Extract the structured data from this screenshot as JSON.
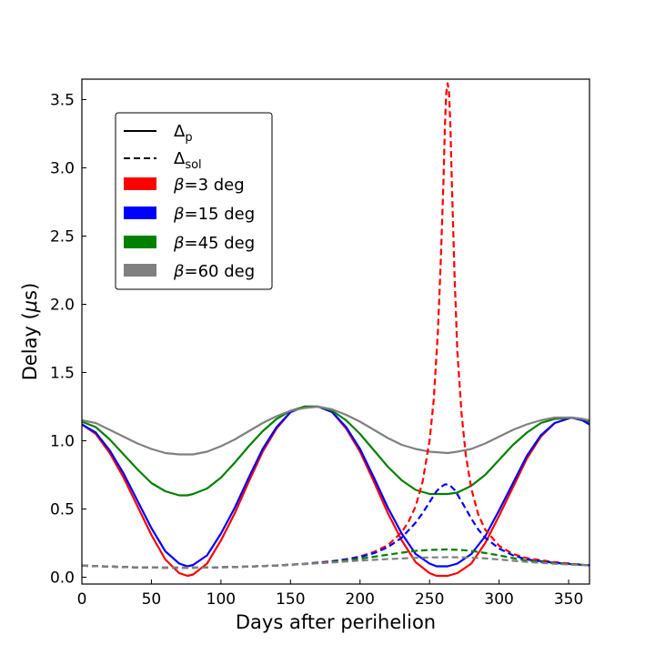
{
  "chart_data": {
    "type": "line",
    "xlabel": "Days after perihelion",
    "ylabel_prefix": "Delay (",
    "ylabel_symbol": "μ",
    "ylabel_suffix": "s)",
    "xlim": [
      0,
      365
    ],
    "ylim": [
      -0.05,
      3.65
    ],
    "xticks": [
      0,
      50,
      100,
      150,
      200,
      250,
      300,
      350
    ],
    "yticks": [
      0.0,
      0.5,
      1.0,
      1.5,
      2.0,
      2.5,
      3.0,
      3.5
    ],
    "ytick_labels": [
      "0.0",
      "0.5",
      "1.0",
      "1.5",
      "2.0",
      "2.5",
      "3.0",
      "3.5"
    ],
    "grid": false,
    "legend": {
      "position": "upper-left",
      "items": [
        {
          "kind": "line",
          "dash": "solid",
          "main": "Δ",
          "sub": "p"
        },
        {
          "kind": "line",
          "dash": "dashed",
          "main": "Δ",
          "sub": "sol"
        },
        {
          "kind": "patch",
          "color": "#ff0000",
          "symbol": "β",
          "text": "=3 deg"
        },
        {
          "kind": "patch",
          "color": "#0000ff",
          "symbol": "β",
          "text": "=15 deg"
        },
        {
          "kind": "patch",
          "color": "#008000",
          "symbol": "β",
          "text": "=45 deg"
        },
        {
          "kind": "patch",
          "color": "#808080",
          "symbol": "β",
          "text": "=60 deg"
        }
      ]
    },
    "series": [
      {
        "name": "Δp β=3 deg",
        "color": "#ff0000",
        "dash": "solid",
        "x": [
          0,
          10,
          20,
          30,
          40,
          50,
          60,
          70,
          76,
          80,
          90,
          100,
          110,
          120,
          130,
          140,
          150,
          160,
          170,
          180,
          190,
          200,
          210,
          220,
          230,
          240,
          250,
          255,
          263,
          270,
          280,
          290,
          300,
          310,
          320,
          330,
          340,
          352,
          360,
          365
        ],
        "y": [
          1.12,
          1.05,
          0.91,
          0.73,
          0.52,
          0.31,
          0.13,
          0.03,
          0.01,
          0.02,
          0.1,
          0.27,
          0.47,
          0.7,
          0.92,
          1.09,
          1.21,
          1.25,
          1.25,
          1.21,
          1.09,
          0.92,
          0.7,
          0.47,
          0.27,
          0.11,
          0.03,
          0.01,
          0.01,
          0.03,
          0.1,
          0.25,
          0.45,
          0.66,
          0.87,
          1.03,
          1.13,
          1.17,
          1.15,
          1.12
        ]
      },
      {
        "name": "Δp β=15 deg",
        "color": "#0000ff",
        "dash": "solid",
        "x": [
          0,
          10,
          20,
          30,
          40,
          50,
          60,
          70,
          76,
          80,
          90,
          100,
          110,
          120,
          130,
          140,
          150,
          160,
          170,
          180,
          190,
          200,
          210,
          220,
          230,
          240,
          250,
          255,
          263,
          270,
          280,
          290,
          300,
          310,
          320,
          330,
          340,
          352,
          360,
          365
        ],
        "y": [
          1.12,
          1.06,
          0.93,
          0.76,
          0.56,
          0.36,
          0.19,
          0.1,
          0.08,
          0.09,
          0.16,
          0.32,
          0.51,
          0.73,
          0.94,
          1.1,
          1.21,
          1.25,
          1.25,
          1.21,
          1.1,
          0.94,
          0.73,
          0.51,
          0.32,
          0.17,
          0.1,
          0.08,
          0.08,
          0.1,
          0.17,
          0.3,
          0.49,
          0.69,
          0.89,
          1.04,
          1.13,
          1.17,
          1.15,
          1.12
        ]
      },
      {
        "name": "Δp β=45 deg",
        "color": "#008000",
        "dash": "solid",
        "x": [
          0,
          10,
          20,
          30,
          40,
          50,
          60,
          70,
          76,
          80,
          90,
          100,
          110,
          120,
          130,
          140,
          150,
          160,
          170,
          180,
          190,
          200,
          210,
          220,
          230,
          240,
          250,
          263,
          270,
          280,
          290,
          300,
          310,
          320,
          330,
          340,
          352,
          360,
          365
        ],
        "y": [
          1.14,
          1.1,
          1.01,
          0.9,
          0.79,
          0.69,
          0.63,
          0.6,
          0.6,
          0.61,
          0.65,
          0.73,
          0.84,
          0.96,
          1.07,
          1.16,
          1.22,
          1.25,
          1.25,
          1.22,
          1.15,
          1.05,
          0.93,
          0.81,
          0.71,
          0.64,
          0.61,
          0.61,
          0.62,
          0.67,
          0.75,
          0.86,
          0.97,
          1.06,
          1.13,
          1.16,
          1.17,
          1.16,
          1.14
        ]
      },
      {
        "name": "Δp β=60 deg",
        "color": "#808080",
        "dash": "solid",
        "x": [
          0,
          10,
          20,
          30,
          40,
          50,
          60,
          70,
          76,
          80,
          90,
          100,
          110,
          120,
          130,
          140,
          150,
          160,
          170,
          180,
          190,
          200,
          210,
          220,
          230,
          240,
          250,
          263,
          270,
          280,
          290,
          300,
          310,
          320,
          330,
          340,
          352,
          360,
          365
        ],
        "y": [
          1.15,
          1.13,
          1.08,
          1.03,
          0.98,
          0.94,
          0.91,
          0.9,
          0.9,
          0.9,
          0.92,
          0.96,
          1.01,
          1.07,
          1.13,
          1.18,
          1.22,
          1.24,
          1.25,
          1.23,
          1.19,
          1.14,
          1.08,
          1.02,
          0.97,
          0.94,
          0.92,
          0.91,
          0.92,
          0.94,
          0.98,
          1.03,
          1.08,
          1.12,
          1.15,
          1.17,
          1.17,
          1.16,
          1.15
        ]
      },
      {
        "name": "Δsol β=3 deg",
        "color": "#ff0000",
        "dash": "dashed",
        "x": [
          0,
          20,
          40,
          60,
          80,
          100,
          120,
          140,
          160,
          180,
          190,
          200,
          210,
          220,
          230,
          235,
          240,
          245,
          250,
          253,
          256,
          258,
          260,
          261,
          262,
          263,
          264,
          265,
          266,
          268,
          270,
          273,
          276,
          280,
          285,
          290,
          300,
          310,
          320,
          340,
          365
        ],
        "y": [
          0.085,
          0.078,
          0.072,
          0.07,
          0.07,
          0.073,
          0.078,
          0.086,
          0.098,
          0.118,
          0.132,
          0.152,
          0.185,
          0.235,
          0.33,
          0.41,
          0.52,
          0.7,
          1.0,
          1.3,
          1.8,
          2.3,
          2.9,
          3.3,
          3.55,
          3.62,
          3.55,
          3.3,
          2.9,
          2.2,
          1.65,
          1.2,
          0.9,
          0.65,
          0.46,
          0.35,
          0.23,
          0.17,
          0.14,
          0.11,
          0.087
        ]
      },
      {
        "name": "Δsol β=15 deg",
        "color": "#0000ff",
        "dash": "dashed",
        "x": [
          0,
          20,
          40,
          60,
          80,
          100,
          120,
          140,
          160,
          180,
          200,
          210,
          220,
          230,
          240,
          245,
          250,
          255,
          258,
          261,
          263,
          265,
          268,
          271,
          275,
          280,
          285,
          290,
          300,
          310,
          320,
          340,
          365
        ],
        "y": [
          0.085,
          0.078,
          0.072,
          0.07,
          0.07,
          0.073,
          0.078,
          0.086,
          0.098,
          0.115,
          0.148,
          0.176,
          0.22,
          0.29,
          0.4,
          0.47,
          0.55,
          0.63,
          0.66,
          0.68,
          0.68,
          0.67,
          0.64,
          0.59,
          0.52,
          0.43,
          0.35,
          0.29,
          0.21,
          0.16,
          0.13,
          0.105,
          0.087
        ]
      },
      {
        "name": "Δsol β=45 deg",
        "color": "#008000",
        "dash": "dashed",
        "x": [
          0,
          20,
          40,
          60,
          80,
          100,
          120,
          140,
          160,
          180,
          200,
          210,
          220,
          230,
          240,
          250,
          263,
          275,
          285,
          300,
          310,
          320,
          340,
          365
        ],
        "y": [
          0.085,
          0.078,
          0.072,
          0.07,
          0.07,
          0.073,
          0.078,
          0.086,
          0.097,
          0.112,
          0.136,
          0.15,
          0.165,
          0.18,
          0.193,
          0.2,
          0.204,
          0.198,
          0.186,
          0.16,
          0.14,
          0.122,
          0.102,
          0.087
        ]
      },
      {
        "name": "Δsol β=60 deg",
        "color": "#808080",
        "dash": "dashed",
        "x": [
          0,
          20,
          40,
          60,
          80,
          100,
          120,
          140,
          160,
          180,
          200,
          220,
          240,
          250,
          263,
          275,
          290,
          300,
          310,
          320,
          340,
          365
        ],
        "y": [
          0.085,
          0.078,
          0.072,
          0.07,
          0.07,
          0.073,
          0.078,
          0.086,
          0.096,
          0.108,
          0.122,
          0.133,
          0.142,
          0.145,
          0.147,
          0.145,
          0.138,
          0.13,
          0.121,
          0.112,
          0.098,
          0.087
        ]
      }
    ]
  }
}
